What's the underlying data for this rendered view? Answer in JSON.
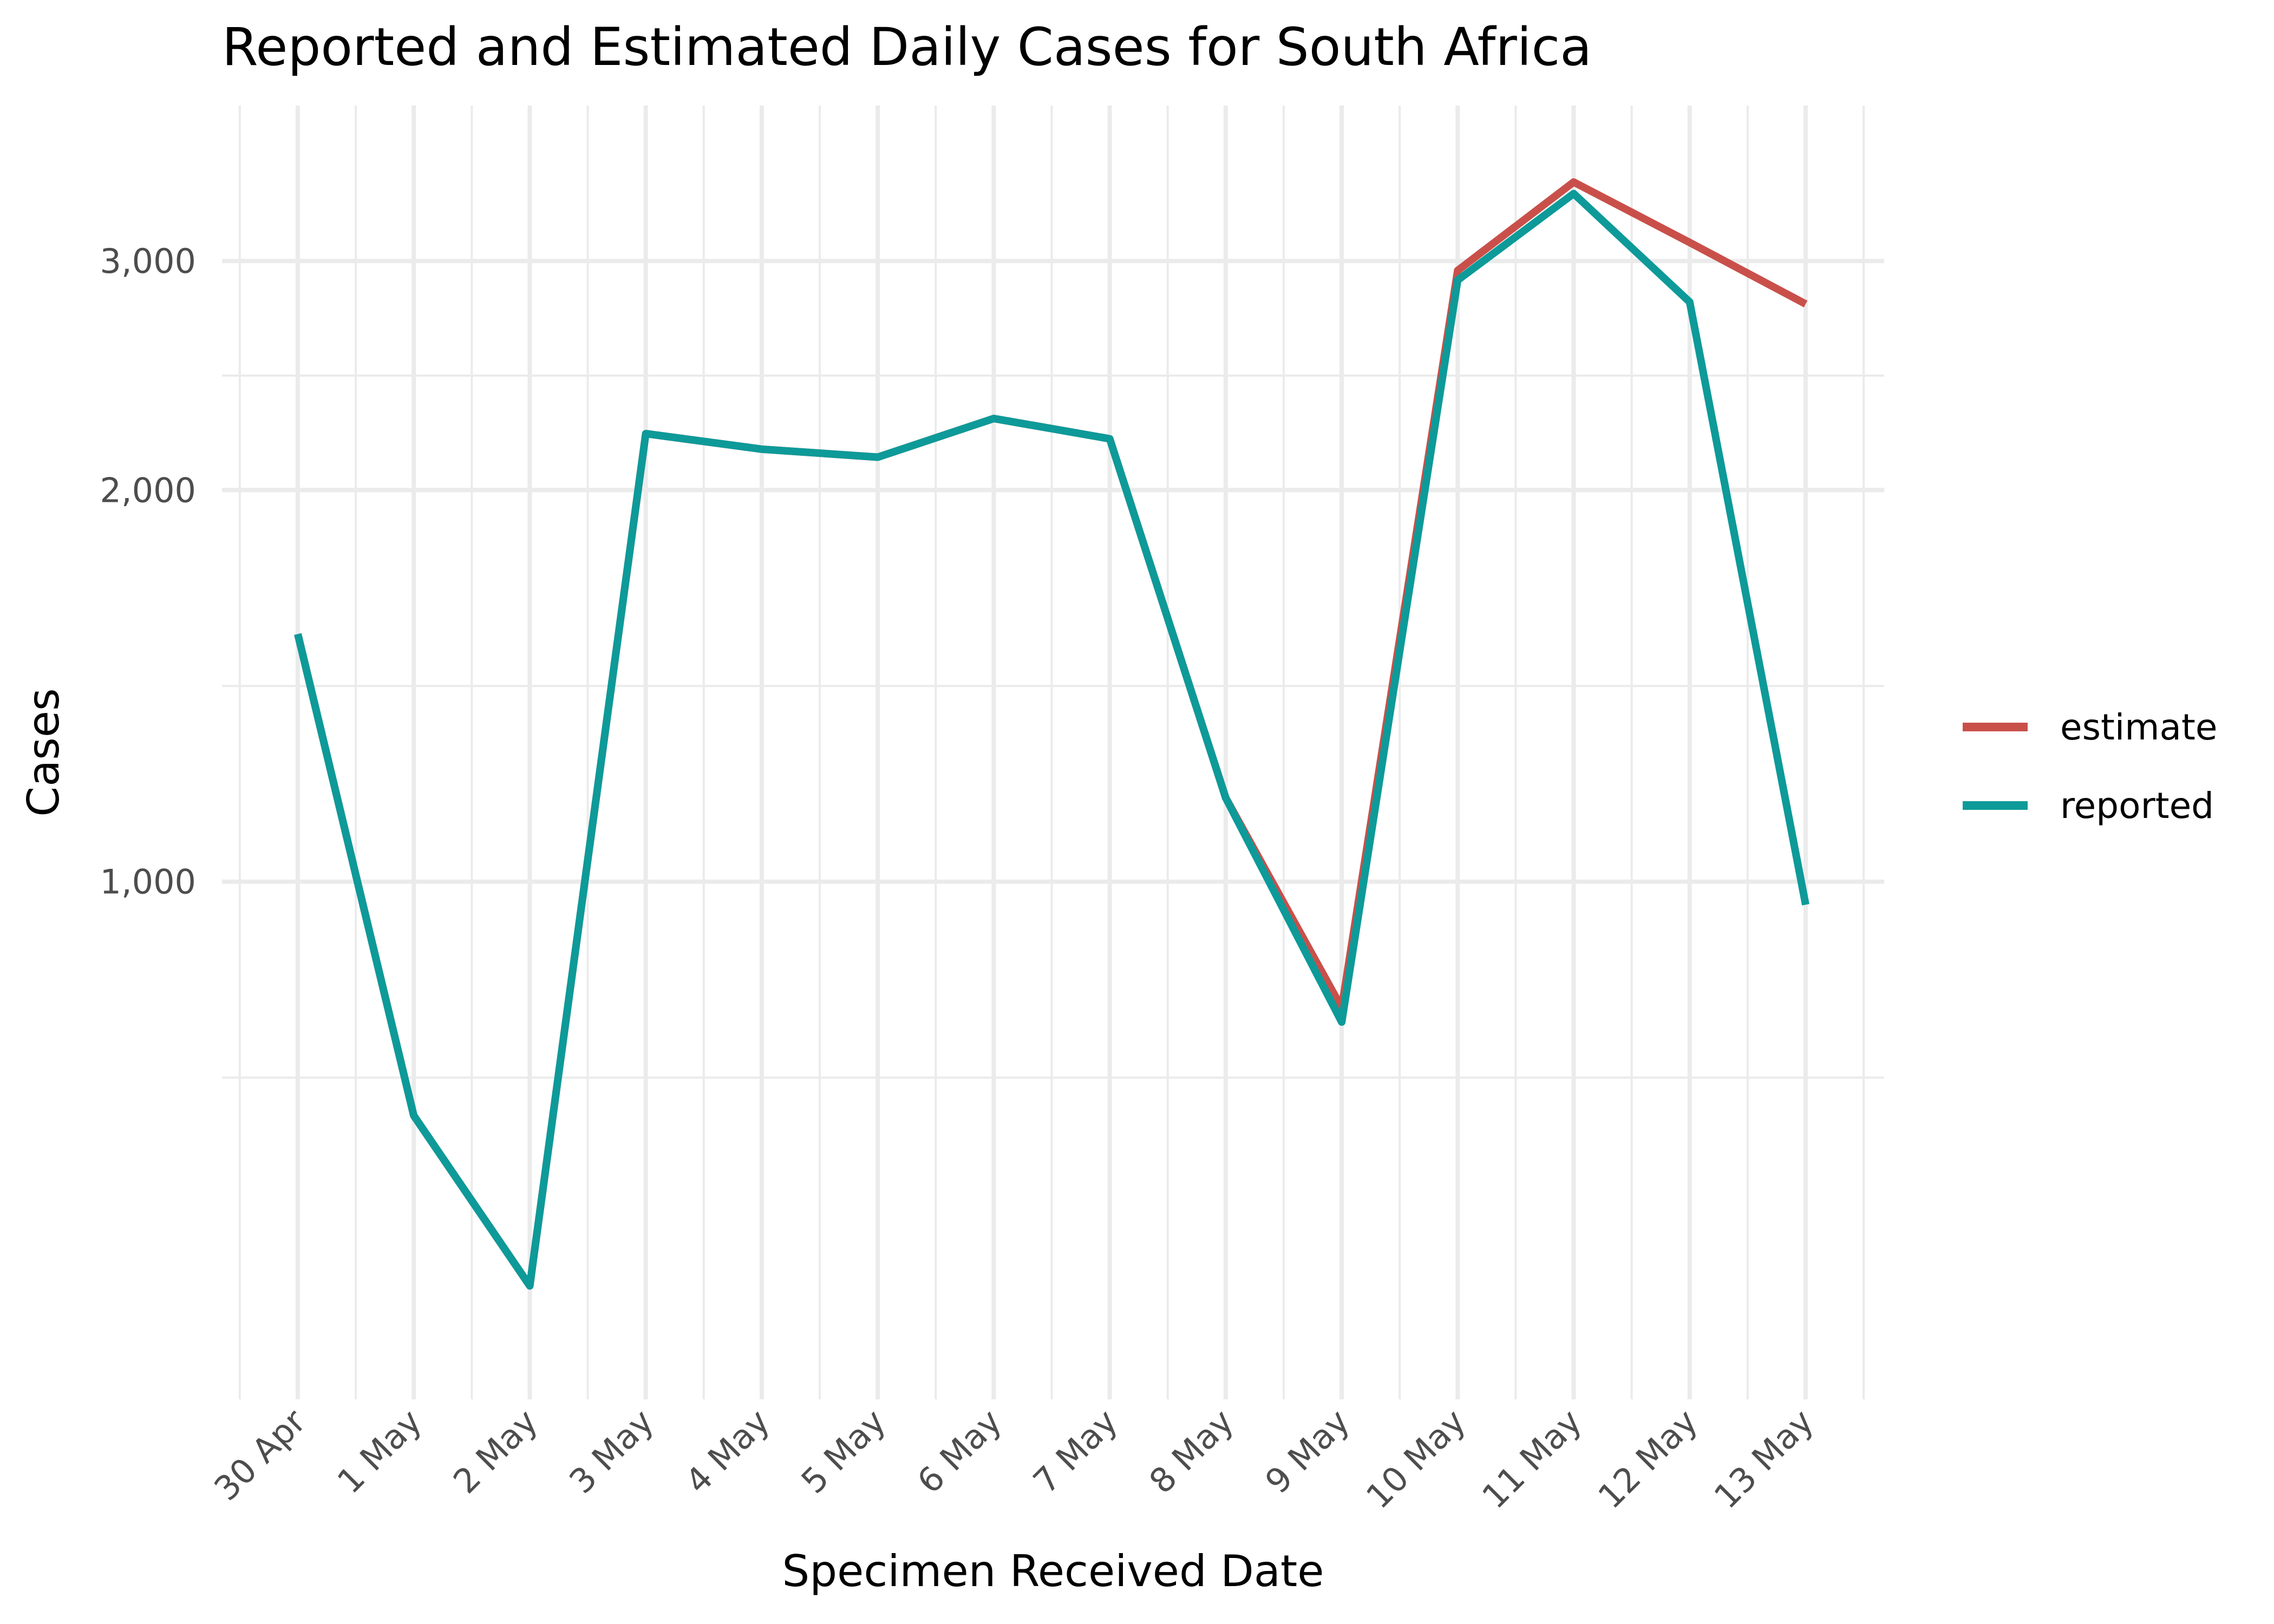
{
  "chart_data": {
    "type": "line",
    "title": "Reported and Estimated Daily Cases for South Africa",
    "xlabel": "Specimen Received Date",
    "ylabel": "Cases",
    "categories": [
      "30 Apr",
      "1 May",
      "2 May",
      "3 May",
      "4 May",
      "5 May",
      "6 May",
      "7 May",
      "8 May",
      "9 May",
      "10 May",
      "11 May",
      "12 May",
      "13 May"
    ],
    "y_scale": "log",
    "ylim": [
      400,
      3950
    ],
    "y_ticks": [
      {
        "value": 1000,
        "label": "1,000"
      },
      {
        "value": 2000,
        "label": "2,000"
      },
      {
        "value": 3000,
        "label": "3,000"
      }
    ],
    "y_minor_ticks": [
      707,
      1414,
      2449
    ],
    "grid": true,
    "legend_position": "right",
    "series": [
      {
        "name": "estimate",
        "color": "#c9504a",
        "values": [
          1550,
          661,
          489,
          2210,
          2150,
          2120,
          2270,
          2190,
          1160,
          800,
          2950,
          3450,
          3100,
          2780
        ]
      },
      {
        "name": "reported",
        "color": "#0d9a99",
        "values": [
          1550,
          661,
          489,
          2210,
          2150,
          2120,
          2270,
          2190,
          1160,
          780,
          2900,
          3380,
          2790,
          960
        ]
      }
    ]
  }
}
